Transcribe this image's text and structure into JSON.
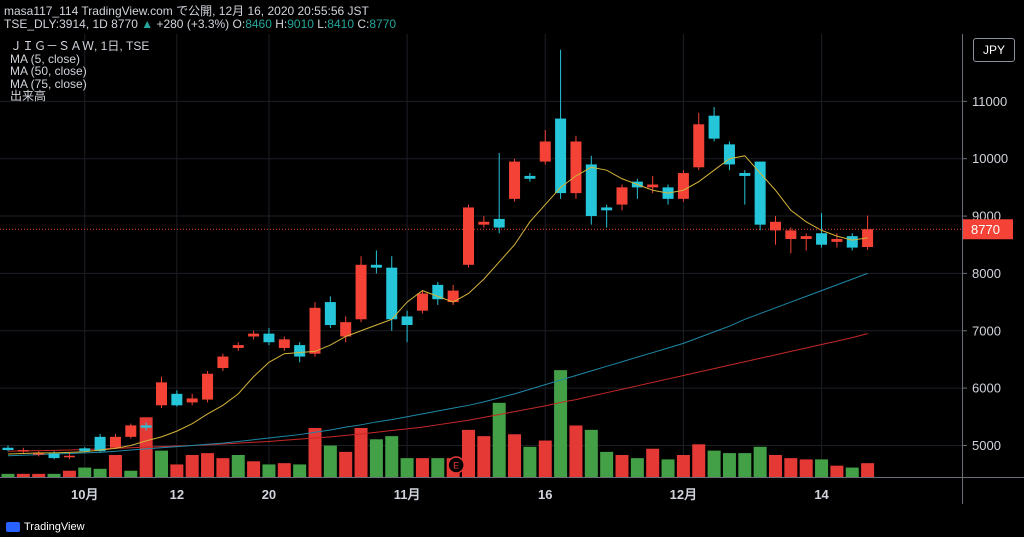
{
  "header": {
    "line1": "masa117_114 TradingView.com で公開, 12月 16, 2020 20:55:56 JST",
    "line2_prefix": "TSE_DLY:3914, 1D 8770",
    "change": "+280 (+3.3%)",
    "o_label": " O:",
    "o_value": "8460",
    "h_label": " H:",
    "h_value": "9010",
    "l_label": " L:",
    "l_value": "8410",
    "c_label": " C:",
    "c_value": "8770"
  },
  "legend": {
    "symbol": "ＪＩＧ－ＳＡＷ, 1日, TSE",
    "ma5": "MA (5, close)",
    "ma50": "MA (50, close)",
    "ma75": "MA (75, close)",
    "volume": "出来高"
  },
  "currency_label": "JPY",
  "branding": "TradingView",
  "colors": {
    "up": "#26c6da",
    "down": "#f44336",
    "vol_up": "#43a047",
    "vol_down": "#e53935",
    "ma5": "#d4b33a",
    "ma50": "#1e88a8",
    "ma75": "#c62828",
    "last_price": "#f44336"
  },
  "chart_data": {
    "type": "candlestick",
    "title": "ＪＩＧ－ＳＡＷ, 1日, TSE",
    "ylim": [
      4450,
      12000
    ],
    "y_ticks": [
      5000,
      6000,
      7000,
      8000,
      9000,
      10000,
      11000
    ],
    "x_ticks": [
      {
        "label": "10月",
        "index": 5
      },
      {
        "label": "12",
        "index": 11
      },
      {
        "label": "20",
        "index": 17
      },
      {
        "label": "11月",
        "index": 26
      },
      {
        "label": "16",
        "index": 35
      },
      {
        "label": "12月",
        "index": 44
      },
      {
        "label": "14",
        "index": 53
      }
    ],
    "last_price": 8770,
    "last_price_label": "8770",
    "event_marker": {
      "label": "E",
      "index": 29
    },
    "candles": [
      [
        4960,
        4920,
        5000,
        4900,
        "up"
      ],
      [
        4900,
        4920,
        4960,
        4870,
        "down"
      ],
      [
        4870,
        4840,
        4900,
        4810,
        "down"
      ],
      [
        4780,
        4860,
        4900,
        4760,
        "up"
      ],
      [
        4820,
        4800,
        4880,
        4760,
        "down"
      ],
      [
        4950,
        4900,
        4970,
        4880,
        "up"
      ],
      [
        5150,
        4900,
        5200,
        4880,
        "up"
      ],
      [
        4960,
        5150,
        5200,
        4940,
        "down"
      ],
      [
        5150,
        5350,
        5380,
        5120,
        "down"
      ],
      [
        5350,
        5310,
        5400,
        5260,
        "up"
      ],
      [
        5700,
        6100,
        6200,
        5650,
        "down"
      ],
      [
        5900,
        5700,
        5960,
        5680,
        "up"
      ],
      [
        5750,
        5820,
        5900,
        5700,
        "down"
      ],
      [
        5800,
        6250,
        6300,
        5750,
        "down"
      ],
      [
        6350,
        6550,
        6600,
        6300,
        "down"
      ],
      [
        6700,
        6750,
        6800,
        6650,
        "down"
      ],
      [
        6900,
        6950,
        7000,
        6850,
        "down"
      ],
      [
        6950,
        6800,
        7050,
        6750,
        "up"
      ],
      [
        6850,
        6700,
        6900,
        6650,
        "down"
      ],
      [
        6750,
        6550,
        6800,
        6450,
        "up"
      ],
      [
        6600,
        7400,
        7500,
        6550,
        "down"
      ],
      [
        7500,
        7100,
        7600,
        7050,
        "up"
      ],
      [
        6900,
        7150,
        7250,
        6800,
        "down"
      ],
      [
        7200,
        8150,
        8300,
        7150,
        "down"
      ],
      [
        8150,
        8100,
        8400,
        8000,
        "up"
      ],
      [
        8100,
        7200,
        8300,
        7000,
        "up"
      ],
      [
        7100,
        7250,
        7350,
        6800,
        "up"
      ],
      [
        7350,
        7650,
        7700,
        7300,
        "down"
      ],
      [
        7800,
        7550,
        7850,
        7450,
        "up"
      ],
      [
        7500,
        7700,
        7800,
        7450,
        "down"
      ],
      [
        8150,
        9150,
        9200,
        8100,
        "down"
      ],
      [
        8850,
        8900,
        9000,
        8800,
        "down"
      ],
      [
        8950,
        8800,
        10100,
        8700,
        "up"
      ],
      [
        9300,
        9950,
        10000,
        9250,
        "down"
      ],
      [
        9700,
        9650,
        9750,
        9600,
        "up"
      ],
      [
        9950,
        10300,
        10500,
        9900,
        "down"
      ],
      [
        10700,
        9400,
        11900,
        9300,
        "up"
      ],
      [
        10300,
        9400,
        10400,
        9300,
        "down"
      ],
      [
        9900,
        9000,
        10050,
        8850,
        "up"
      ],
      [
        9100,
        9150,
        9200,
        8800,
        "up"
      ],
      [
        9200,
        9500,
        9550,
        9100,
        "down"
      ],
      [
        9600,
        9500,
        9650,
        9300,
        "up"
      ],
      [
        9550,
        9500,
        9700,
        9400,
        "down"
      ],
      [
        9500,
        9300,
        9550,
        9200,
        "up"
      ],
      [
        9300,
        9750,
        9800,
        9250,
        "down"
      ],
      [
        9850,
        10600,
        10800,
        9800,
        "down"
      ],
      [
        10750,
        10350,
        10900,
        10300,
        "up"
      ],
      [
        10250,
        9900,
        10300,
        9800,
        "up"
      ],
      [
        9750,
        9700,
        9800,
        9200,
        "up"
      ],
      [
        9950,
        8850,
        9950,
        8750,
        "up"
      ],
      [
        8750,
        8900,
        9000,
        8500,
        "down"
      ],
      [
        8600,
        8750,
        8800,
        8350,
        "down"
      ],
      [
        8650,
        8600,
        8700,
        8400,
        "down"
      ],
      [
        8700,
        8500,
        9050,
        8450,
        "up"
      ],
      [
        8550,
        8600,
        8700,
        8450,
        "down"
      ],
      [
        8650,
        8450,
        8700,
        8400,
        "up"
      ],
      [
        8460,
        8770,
        9010,
        8410,
        "down"
      ]
    ],
    "volume": [
      [
        5,
        "up"
      ],
      [
        5,
        "down"
      ],
      [
        5,
        "down"
      ],
      [
        5,
        "up"
      ],
      [
        10,
        "down"
      ],
      [
        15,
        "up"
      ],
      [
        13,
        "up"
      ],
      [
        35,
        "down"
      ],
      [
        10,
        "up"
      ],
      [
        95,
        "down"
      ],
      [
        42,
        "up"
      ],
      [
        20,
        "down"
      ],
      [
        35,
        "down"
      ],
      [
        38,
        "down"
      ],
      [
        30,
        "down"
      ],
      [
        35,
        "up"
      ],
      [
        25,
        "down"
      ],
      [
        20,
        "up"
      ],
      [
        22,
        "down"
      ],
      [
        20,
        "up"
      ],
      [
        78,
        "down"
      ],
      [
        50,
        "up"
      ],
      [
        40,
        "down"
      ],
      [
        78,
        "down"
      ],
      [
        60,
        "up"
      ],
      [
        65,
        "up"
      ],
      [
        30,
        "up"
      ],
      [
        30,
        "down"
      ],
      [
        30,
        "up"
      ],
      [
        30,
        "down"
      ],
      [
        75,
        "down"
      ],
      [
        65,
        "down"
      ],
      [
        118,
        "up"
      ],
      [
        68,
        "down"
      ],
      [
        48,
        "up"
      ],
      [
        58,
        "down"
      ],
      [
        170,
        "up"
      ],
      [
        82,
        "down"
      ],
      [
        75,
        "up"
      ],
      [
        40,
        "up"
      ],
      [
        35,
        "down"
      ],
      [
        30,
        "up"
      ],
      [
        45,
        "down"
      ],
      [
        28,
        "up"
      ],
      [
        35,
        "down"
      ],
      [
        52,
        "down"
      ],
      [
        42,
        "up"
      ],
      [
        38,
        "up"
      ],
      [
        38,
        "up"
      ],
      [
        48,
        "up"
      ],
      [
        35,
        "down"
      ],
      [
        30,
        "down"
      ],
      [
        28,
        "down"
      ],
      [
        28,
        "up"
      ],
      [
        18,
        "down"
      ],
      [
        15,
        "up"
      ],
      [
        22,
        "down"
      ]
    ],
    "ma5": [
      4850,
      4860,
      4870,
      4870,
      4880,
      4890,
      4920,
      4950,
      5000,
      5080,
      5150,
      5250,
      5380,
      5550,
      5700,
      5900,
      6200,
      6450,
      6600,
      6620,
      6640,
      6750,
      6900,
      7000,
      7100,
      7200,
      7500,
      7700,
      7600,
      7500,
      7650,
      7900,
      8200,
      8500,
      8900,
      9200,
      9500,
      9700,
      9850,
      9800,
      9650,
      9550,
      9450,
      9400,
      9450,
      9600,
      9800,
      10000,
      10050,
      9750,
      9450,
      9100,
      8900,
      8750,
      8650,
      8580,
      8620
    ],
    "ma50": [
      4820,
      4830,
      4840,
      4850,
      4860,
      4870,
      4880,
      4900,
      4920,
      4940,
      4960,
      4980,
      5000,
      5020,
      5040,
      5070,
      5100,
      5130,
      5160,
      5190,
      5230,
      5270,
      5320,
      5360,
      5410,
      5450,
      5500,
      5550,
      5600,
      5650,
      5700,
      5760,
      5830,
      5900,
      5980,
      6060,
      6140,
      6220,
      6300,
      6380,
      6460,
      6540,
      6620,
      6700,
      6780,
      6880,
      6980,
      7080,
      7200,
      7300,
      7400,
      7500,
      7600,
      7700,
      7800,
      7900,
      8000
    ],
    "ma75": [
      4900,
      4905,
      4910,
      4915,
      4920,
      4930,
      4940,
      4950,
      4960,
      4970,
      4980,
      4990,
      5000,
      5010,
      5025,
      5040,
      5055,
      5070,
      5090,
      5110,
      5130,
      5150,
      5175,
      5200,
      5230,
      5260,
      5290,
      5320,
      5360,
      5400,
      5440,
      5490,
      5540,
      5590,
      5640,
      5690,
      5750,
      5800,
      5860,
      5920,
      5980,
      6040,
      6100,
      6160,
      6220,
      6280,
      6340,
      6400,
      6460,
      6520,
      6580,
      6640,
      6700,
      6760,
      6820,
      6880,
      6950
    ]
  }
}
